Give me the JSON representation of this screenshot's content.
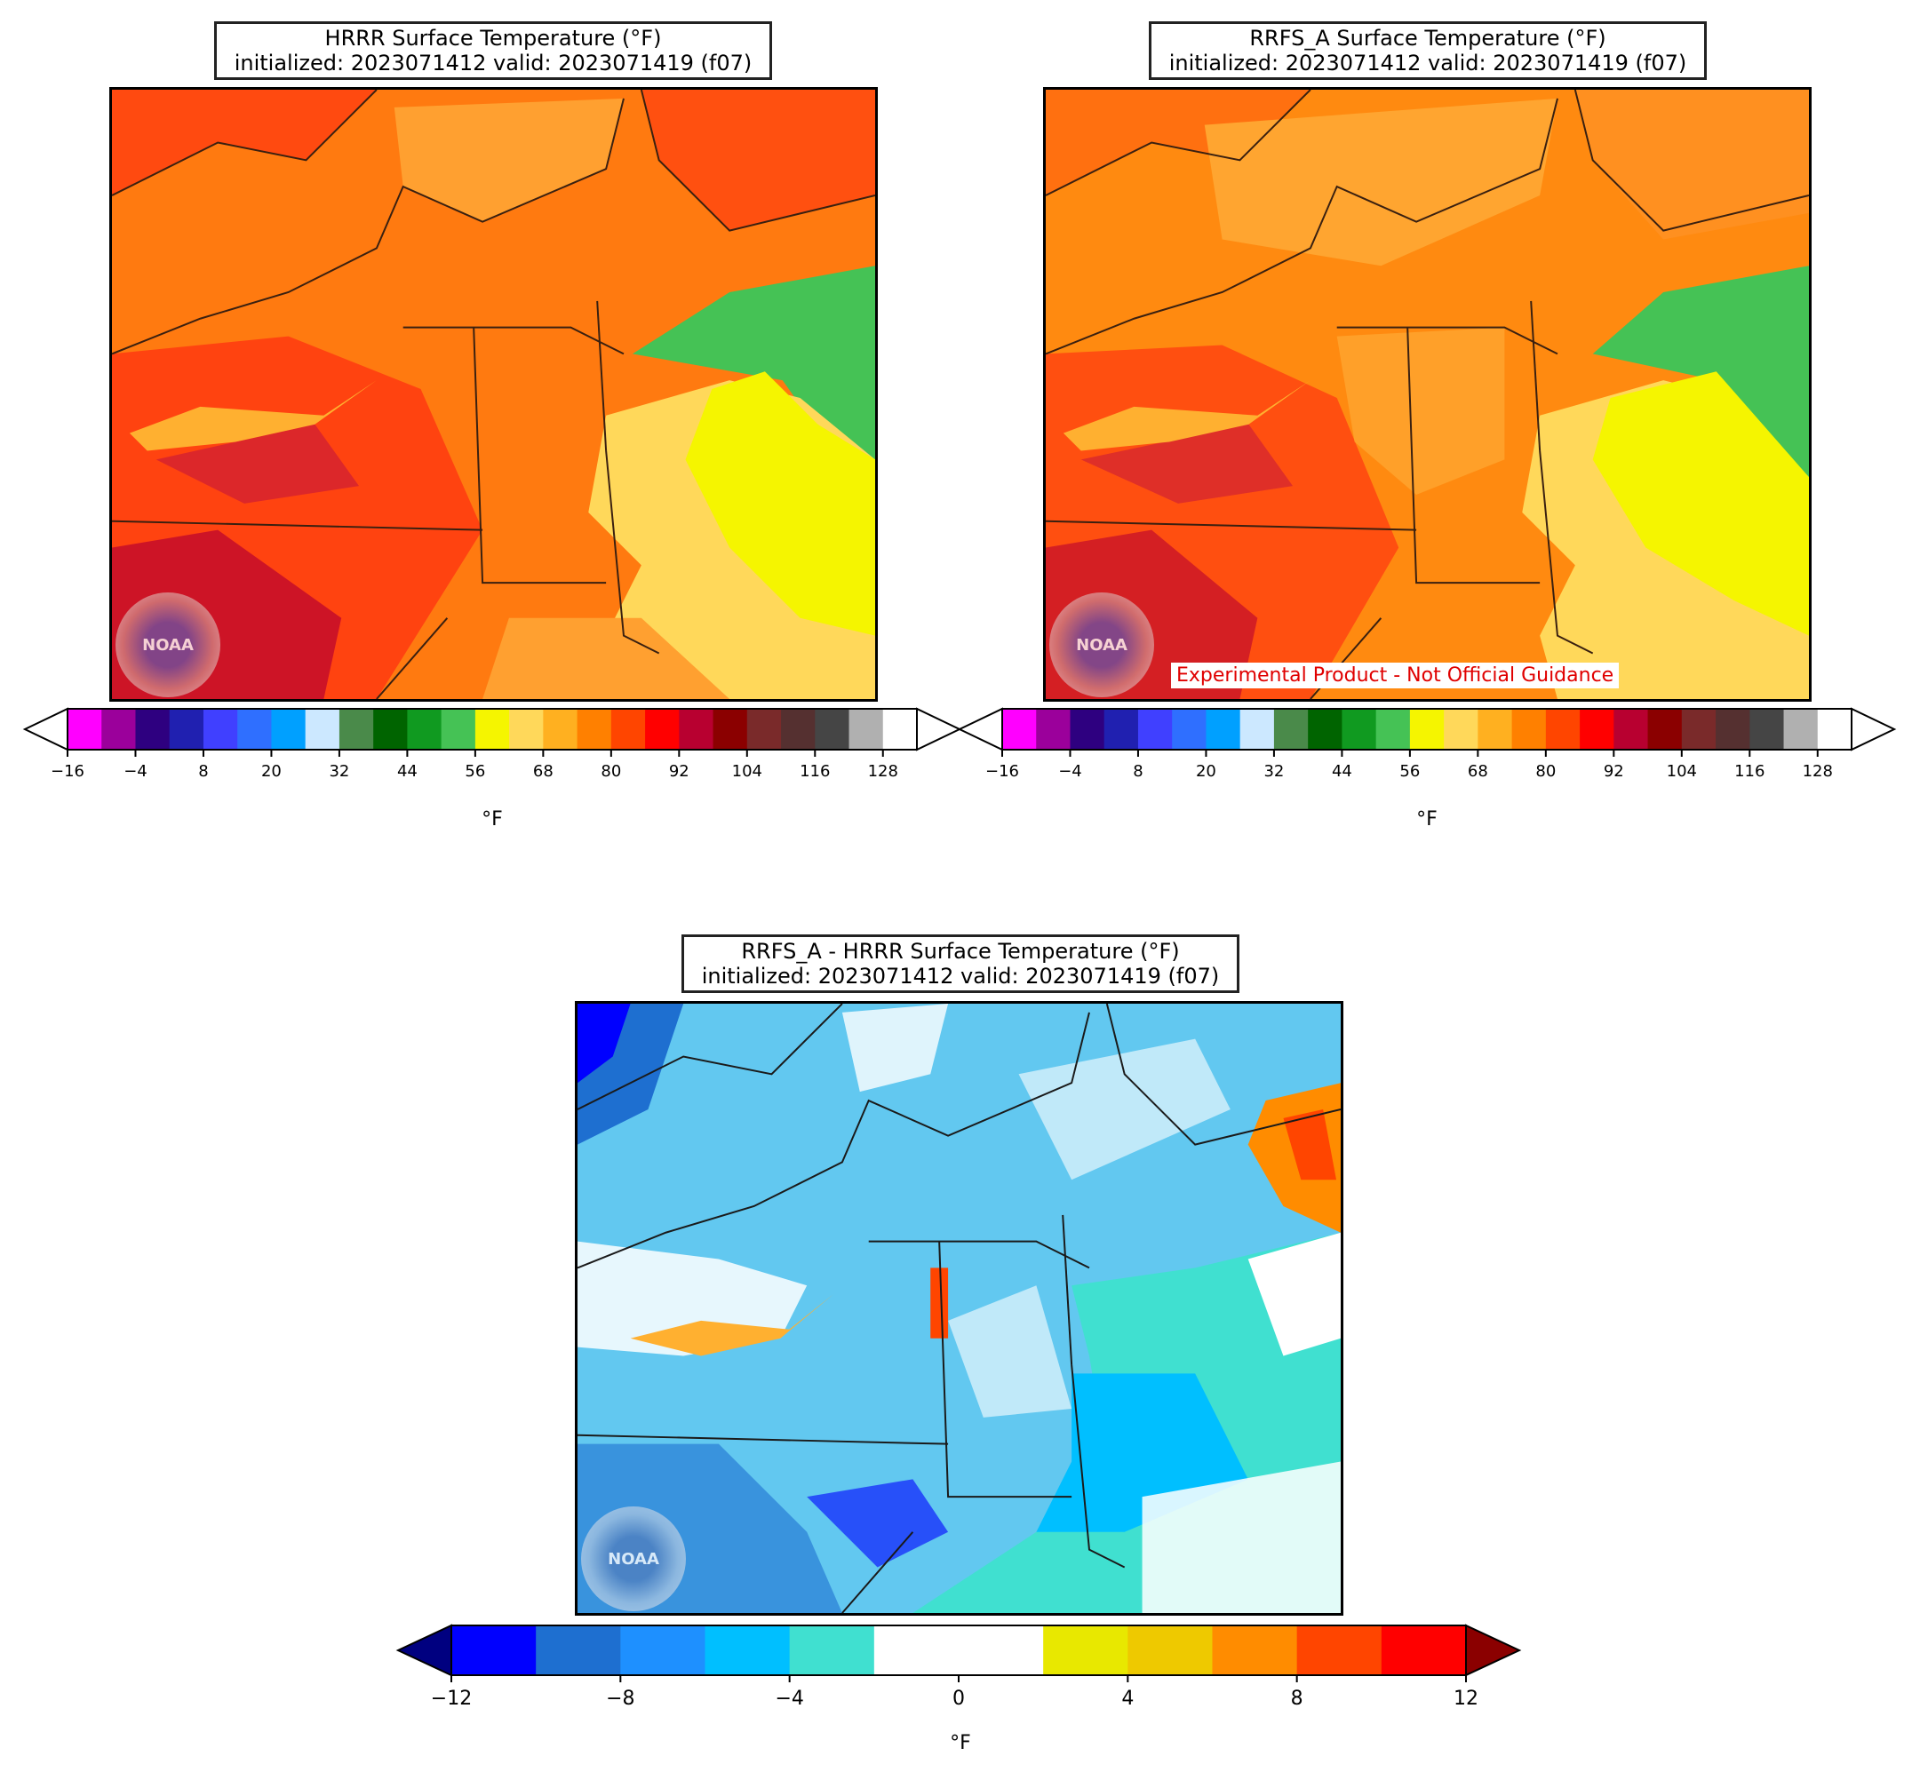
{
  "panels": [
    {
      "id": "hrrr",
      "title_line1": "HRRR Surface Temperature (°F)",
      "title_line2": "initialized: 2023071412 valid: 2023071419 (f07)",
      "logo_text": "NOAA"
    },
    {
      "id": "rrfs",
      "title_line1": "RRFS_A Surface Temperature (°F)",
      "title_line2": "initialized: 2023071412 valid: 2023071419 (f07)",
      "logo_text": "NOAA",
      "notice": "Experimental Product - Not Official Guidance"
    },
    {
      "id": "diff",
      "title_line1": "RRFS_A - HRRR Surface Temperature (°F)",
      "title_line2": "initialized: 2023071412 valid: 2023071419 (f07)",
      "logo_text": "NOAA"
    }
  ],
  "temp_colorbar": {
    "unit": "°F",
    "extend": "both",
    "ticks": [
      "−16",
      "−4",
      "8",
      "20",
      "32",
      "44",
      "56",
      "68",
      "80",
      "92",
      "104",
      "116",
      "128"
    ],
    "min_arrow_color": "#ffffff",
    "max_arrow_color": "#ffffff",
    "colors": [
      "#ff00ff",
      "#9b009b",
      "#2e0080",
      "#2020b0",
      "#4040ff",
      "#2f6fff",
      "#00a0ff",
      "#cce8ff",
      "#4a8a4a",
      "#006400",
      "#109a20",
      "#45c255",
      "#f5f500",
      "#ffd85a",
      "#ffb020",
      "#ff8000",
      "#ff4500",
      "#ff0000",
      "#b80030",
      "#8b0000",
      "#7a2a2a",
      "#553030",
      "#454545",
      "#b0b0b0",
      "#ffffff"
    ]
  },
  "diff_colorbar": {
    "unit": "°F",
    "extend": "both",
    "ticks": [
      "−12",
      "−8",
      "−4",
      "0",
      "4",
      "8",
      "12"
    ],
    "min_arrow_color": "#000080",
    "max_arrow_color": "#8b0000",
    "colors": [
      "#0000ff",
      "#1e6fd0",
      "#1e90ff",
      "#00bfff",
      "#40e0d0",
      "#ffffff",
      "#ffffff",
      "#e8e800",
      "#eec900",
      "#ff8c00",
      "#ff4500",
      "#ff0000"
    ]
  },
  "map_colors": {
    "hrrr_base": "#ff7a10",
    "hrrr_cool": "#ffb030",
    "hrrr_warm": "#ff3010",
    "ocean_cool": "#ffd85a",
    "ocean_yellow": "#f5f500",
    "ocean_green": "#45c255",
    "diff_land": "#62c8f0",
    "diff_ocean": "#00bfff",
    "diff_teal": "#40e0d0"
  }
}
